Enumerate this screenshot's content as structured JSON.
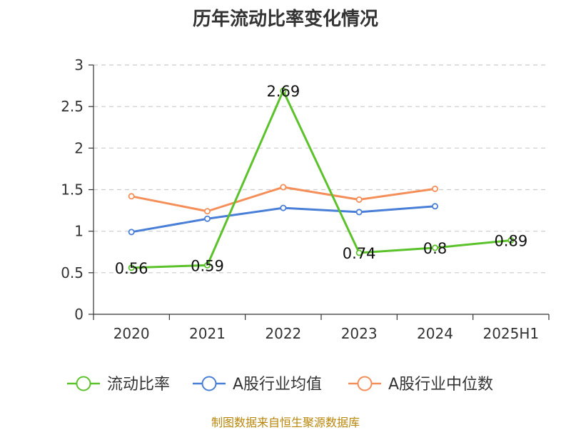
{
  "chart_data": {
    "type": "line",
    "title": "历年流动比率变化情况",
    "categories": [
      "2020",
      "2021",
      "2022",
      "2023",
      "2024",
      "2025H1"
    ],
    "ylim": [
      0,
      3
    ],
    "yticks": [
      "0",
      "0.5",
      "1",
      "1.5",
      "2",
      "2.5",
      "3"
    ],
    "ytick_values": [
      0,
      0.5,
      1,
      1.5,
      2,
      2.5,
      3
    ],
    "grid": true,
    "legend_position": "bottom",
    "series": [
      {
        "name": "流动比率",
        "color": "#5cc22b",
        "values": [
          0.56,
          0.59,
          2.69,
          0.74,
          0.8,
          0.89
        ],
        "labels": [
          "0.56",
          "0.59",
          "2.69",
          "0.74",
          "0.8",
          "0.89"
        ],
        "show_labels": true
      },
      {
        "name": "A股行业均值",
        "color": "#4a7fd8",
        "values": [
          0.99,
          1.15,
          1.28,
          1.23,
          1.3,
          null
        ],
        "show_labels": false
      },
      {
        "name": "A股行业中位数",
        "color": "#f58f5a",
        "values": [
          1.42,
          1.24,
          1.53,
          1.38,
          1.51,
          null
        ],
        "show_labels": false
      }
    ]
  },
  "footer": {
    "source": "制图数据来自恒生聚源数据库"
  }
}
